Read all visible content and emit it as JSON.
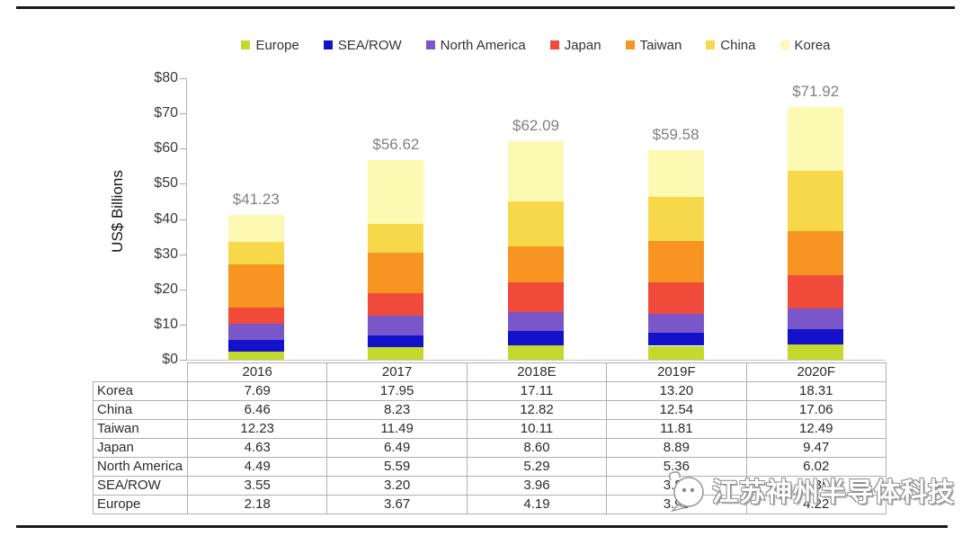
{
  "chart_data": {
    "type": "bar",
    "stacked": true,
    "title": "",
    "xlabel": "",
    "ylabel": "US$ Billions",
    "ylim": [
      0,
      80
    ],
    "ytick_step": 10,
    "yticks": [
      "$0",
      "$10",
      "$20",
      "$30",
      "$40",
      "$50",
      "$60",
      "$70",
      "$80"
    ],
    "grid": false,
    "legend_position": "top",
    "categories": [
      "2016",
      "2017",
      "2018E",
      "2019F",
      "2020F"
    ],
    "series": [
      {
        "name": "Europe",
        "color": "#c3d92e",
        "values": [
          2.18,
          3.67,
          4.19,
          3.96,
          4.22
        ]
      },
      {
        "name": "SEA/ROW",
        "color": "#1311c9",
        "values": [
          3.55,
          3.2,
          3.96,
          3.82,
          4.35
        ]
      },
      {
        "name": "North America",
        "color": "#7a57c9",
        "values": [
          4.49,
          5.59,
          5.29,
          5.36,
          6.02
        ]
      },
      {
        "name": "Japan",
        "color": "#f04a3a",
        "values": [
          4.63,
          6.49,
          8.6,
          8.89,
          9.47
        ]
      },
      {
        "name": "Taiwan",
        "color": "#f89422",
        "values": [
          12.23,
          11.49,
          10.11,
          11.81,
          12.49
        ]
      },
      {
        "name": "China",
        "color": "#f8d84b",
        "values": [
          6.46,
          8.23,
          12.82,
          12.54,
          17.06
        ]
      },
      {
        "name": "Korea",
        "color": "#fcf9b2",
        "values": [
          7.69,
          17.95,
          17.11,
          13.2,
          18.31
        ]
      }
    ],
    "total_labels": [
      "$41.23",
      "$56.62",
      "$62.09",
      "$59.58",
      "$71.92"
    ]
  },
  "table": {
    "header": [
      "",
      "2016",
      "2017",
      "2018E",
      "2019F",
      "2020F"
    ],
    "rows": [
      {
        "label": "Korea",
        "values": [
          "7.69",
          "17.95",
          "17.11",
          "13.20",
          "18.31"
        ]
      },
      {
        "label": "China",
        "values": [
          "6.46",
          "8.23",
          "12.82",
          "12.54",
          "17.06"
        ]
      },
      {
        "label": "Taiwan",
        "values": [
          "12.23",
          "11.49",
          "10.11",
          "11.81",
          "12.49"
        ]
      },
      {
        "label": "Japan",
        "values": [
          "4.63",
          "6.49",
          "8.60",
          "8.89",
          "9.47"
        ]
      },
      {
        "label": "North America",
        "values": [
          "4.49",
          "5.59",
          "5.29",
          "5.36",
          "6.02"
        ]
      },
      {
        "label": "SEA/ROW",
        "values": [
          "3.55",
          "3.20",
          "3.96",
          "3.82",
          "4.35"
        ]
      },
      {
        "label": "Europe",
        "values": [
          "2.18",
          "3.67",
          "4.19",
          "3.96",
          "4.22"
        ]
      }
    ]
  },
  "watermark": {
    "text": "江苏神州半导体科技"
  }
}
